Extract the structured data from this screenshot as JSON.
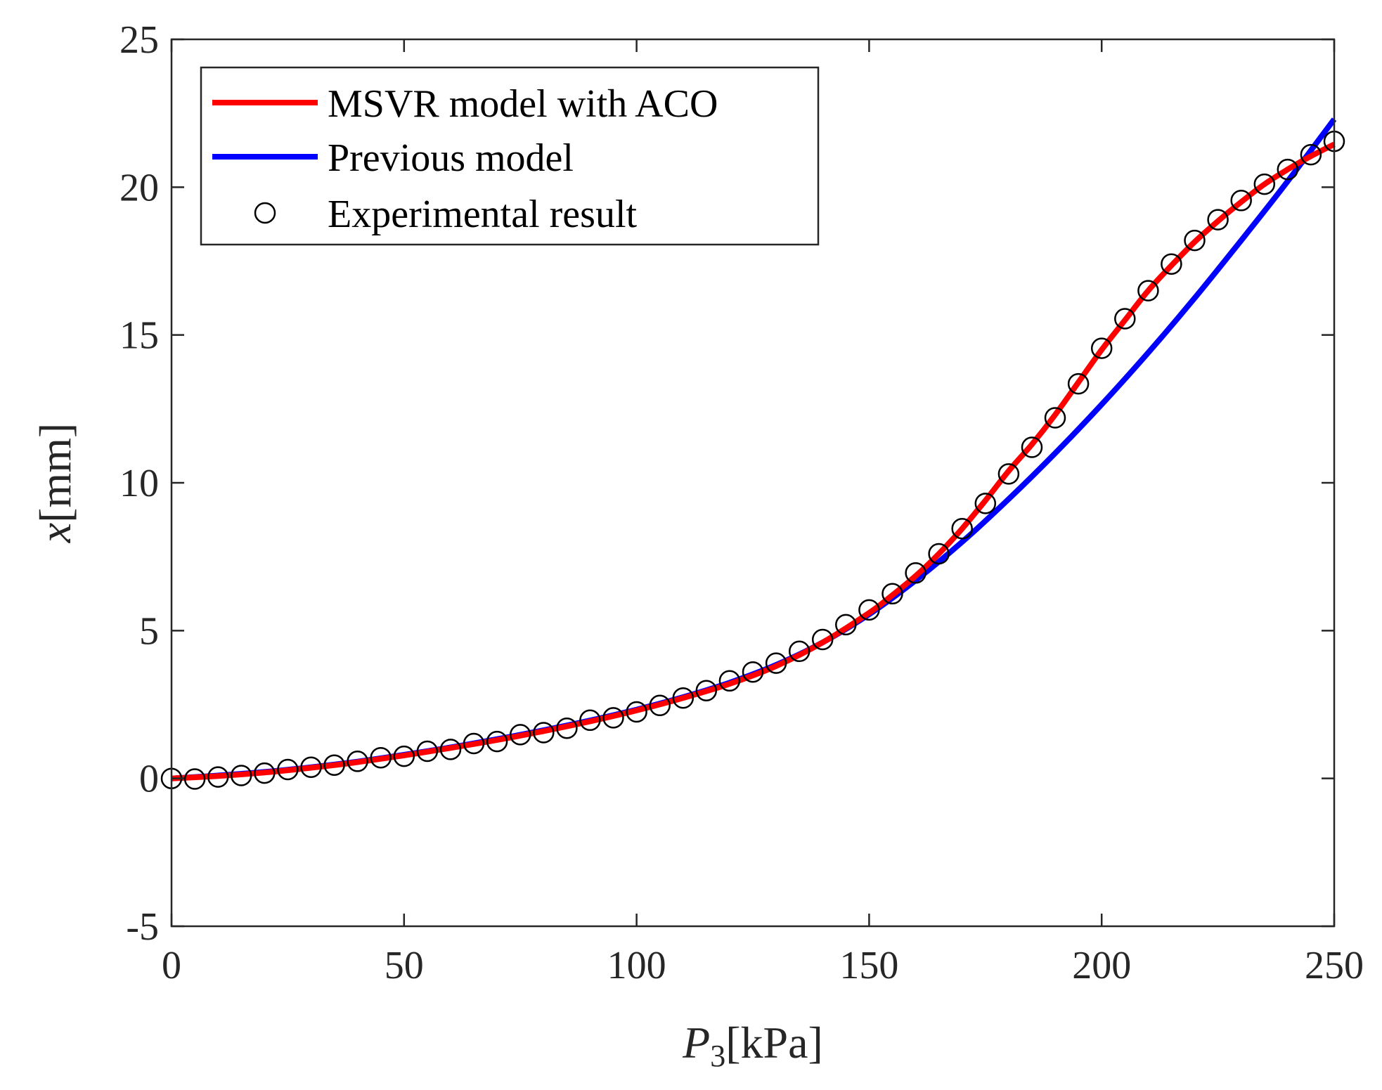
{
  "chart_data": {
    "type": "line",
    "title": "",
    "xlabel": {
      "var": "P",
      "sub": "3",
      "unit": "[kPa]"
    },
    "ylabel": {
      "var": "x",
      "unit": "[mm]"
    },
    "xlim": [
      0,
      250
    ],
    "ylim": [
      -5,
      25
    ],
    "xticks": [
      0,
      50,
      100,
      150,
      200,
      250
    ],
    "yticks": [
      -5,
      0,
      5,
      10,
      15,
      20,
      25
    ],
    "xtick_labels": [
      "0",
      "50",
      "100",
      "150",
      "200",
      "250"
    ],
    "ytick_labels": [
      "-5",
      "0",
      "5",
      "10",
      "15",
      "20",
      "25"
    ],
    "grid": false,
    "legend_position": "top-left",
    "series": [
      {
        "name": "MSVR model with ACO",
        "style": "line",
        "color": "#ff0000",
        "x": [
          0,
          10,
          20,
          30,
          40,
          50,
          60,
          70,
          80,
          90,
          100,
          110,
          120,
          130,
          140,
          150,
          155,
          160,
          165,
          170,
          175,
          180,
          185,
          190,
          195,
          200,
          205,
          210,
          215,
          220,
          225,
          230,
          235,
          240,
          245,
          250
        ],
        "y": [
          0.0,
          0.08,
          0.2,
          0.36,
          0.55,
          0.78,
          1.03,
          1.3,
          1.6,
          1.93,
          2.3,
          2.72,
          3.2,
          3.8,
          4.6,
          5.6,
          6.2,
          6.85,
          7.6,
          8.45,
          9.4,
          10.4,
          11.3,
          12.3,
          13.4,
          14.5,
          15.5,
          16.5,
          17.35,
          18.15,
          18.85,
          19.5,
          20.1,
          20.6,
          21.05,
          21.45
        ]
      },
      {
        "name": "Previous model",
        "style": "line",
        "color": "#0000ff",
        "x": [
          0,
          10,
          20,
          30,
          40,
          50,
          60,
          70,
          80,
          90,
          100,
          110,
          120,
          130,
          140,
          150,
          160,
          170,
          180,
          190,
          200,
          210,
          220,
          230,
          240,
          250
        ],
        "y": [
          0.0,
          0.1,
          0.22,
          0.38,
          0.57,
          0.8,
          1.05,
          1.33,
          1.63,
          1.96,
          2.33,
          2.75,
          3.24,
          3.84,
          4.6,
          5.55,
          6.7,
          8.0,
          9.45,
          11.0,
          12.65,
          14.4,
          16.25,
          18.2,
          20.2,
          22.3
        ]
      },
      {
        "name": "Experimental result",
        "style": "marker",
        "color": "#000000",
        "x": [
          0,
          5,
          10,
          15,
          20,
          25,
          30,
          35,
          40,
          45,
          50,
          55,
          60,
          65,
          70,
          75,
          80,
          85,
          90,
          95,
          100,
          105,
          110,
          115,
          120,
          125,
          130,
          135,
          140,
          145,
          150,
          155,
          160,
          165,
          170,
          175,
          180,
          185,
          190,
          195,
          200,
          205,
          210,
          215,
          220,
          225,
          230,
          235,
          240,
          245,
          250
        ],
        "y": [
          0.0,
          -0.02,
          0.05,
          0.1,
          0.18,
          0.3,
          0.38,
          0.45,
          0.58,
          0.7,
          0.75,
          0.92,
          0.98,
          1.18,
          1.25,
          1.48,
          1.55,
          1.7,
          1.97,
          2.05,
          2.25,
          2.47,
          2.72,
          2.97,
          3.3,
          3.6,
          3.9,
          4.3,
          4.7,
          5.2,
          5.7,
          6.25,
          6.95,
          7.6,
          8.45,
          9.3,
          10.3,
          11.2,
          12.2,
          13.35,
          14.55,
          15.55,
          16.5,
          17.4,
          18.2,
          18.9,
          19.55,
          20.1,
          20.6,
          21.1,
          21.55
        ]
      }
    ]
  }
}
